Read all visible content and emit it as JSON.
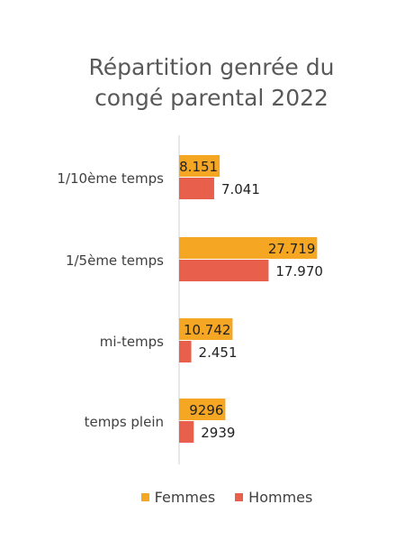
{
  "chart_data": {
    "type": "bar",
    "orientation": "horizontal",
    "title_line1": "Répartition genrée du",
    "title_line2": "congé parental 2022",
    "categories": [
      "1/10ème temps",
      "1/5ème  temps",
      "mi-temps",
      "temps plein"
    ],
    "series": [
      {
        "name": "Femmes",
        "color": "#F5A623",
        "values": [
          8151,
          27719,
          10742,
          9296
        ],
        "labels": [
          "8.151",
          "27.719",
          "10.742",
          "9296"
        ]
      },
      {
        "name": "Hommes",
        "color": "#E8604C",
        "values": [
          7041,
          17970,
          2451,
          2939
        ],
        "labels": [
          "7.041",
          "17.970",
          "2.451",
          "2939"
        ]
      }
    ],
    "xlim": [
      0,
      30000
    ],
    "grid": false,
    "legend_position": "bottom"
  }
}
